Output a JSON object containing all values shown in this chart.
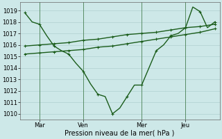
{
  "bg_color": "#cde8e8",
  "grid_color": "#b0d0d0",
  "line_color": "#1a5c1a",
  "xlabel": "Pression niveau de la mer( hPa )",
  "ylim": [
    1009.5,
    1019.7
  ],
  "yticks": [
    1010,
    1011,
    1012,
    1013,
    1014,
    1015,
    1016,
    1017,
    1018,
    1019
  ],
  "xtick_labels": [
    "Mar",
    "Ven",
    "Mer",
    "Jeu"
  ],
  "xtick_positions": [
    24,
    96,
    192,
    264
  ],
  "total_hours": 312,
  "vline_positions": [
    24,
    96,
    192,
    264
  ],
  "line1_x": [
    0,
    12,
    24,
    36,
    48,
    60,
    72,
    84,
    96,
    108,
    120,
    132,
    144,
    156,
    168,
    180,
    192,
    204,
    216,
    228,
    240,
    252,
    264,
    276,
    288,
    300,
    312
  ],
  "line1_y": [
    1018.8,
    1018.0,
    1017.8,
    1016.8,
    1015.9,
    1015.5,
    1015.2,
    1014.4,
    1013.7,
    1012.6,
    1011.7,
    1011.5,
    1010.0,
    1010.5,
    1011.5,
    1012.5,
    1012.5,
    1014.0,
    1015.5,
    1016.0,
    1016.8,
    1017.0,
    1017.5,
    1019.3,
    1018.9,
    1017.5,
    1018.0
  ],
  "line1_markers_x": [
    0,
    24,
    48,
    72,
    96,
    120,
    144,
    168,
    192,
    216,
    240,
    264,
    288,
    312
  ],
  "line1_markers_y": [
    1018.8,
    1017.8,
    1015.9,
    1015.2,
    1013.7,
    1011.7,
    1010.0,
    1011.5,
    1012.5,
    1015.5,
    1016.8,
    1017.5,
    1018.9,
    1018.0
  ],
  "line2_x": [
    0,
    24,
    48,
    72,
    96,
    120,
    144,
    168,
    192,
    216,
    240,
    264,
    288,
    312
  ],
  "line2_y": [
    1015.9,
    1016.0,
    1016.1,
    1016.2,
    1016.4,
    1016.5,
    1016.7,
    1016.9,
    1017.0,
    1017.1,
    1017.3,
    1017.5,
    1017.6,
    1017.8
  ],
  "line3_x": [
    0,
    24,
    48,
    72,
    96,
    120,
    144,
    168,
    192,
    216,
    240,
    264,
    288,
    312
  ],
  "line3_y": [
    1015.2,
    1015.3,
    1015.4,
    1015.5,
    1015.6,
    1015.8,
    1015.9,
    1016.1,
    1016.3,
    1016.5,
    1016.7,
    1016.9,
    1017.1,
    1017.4
  ]
}
